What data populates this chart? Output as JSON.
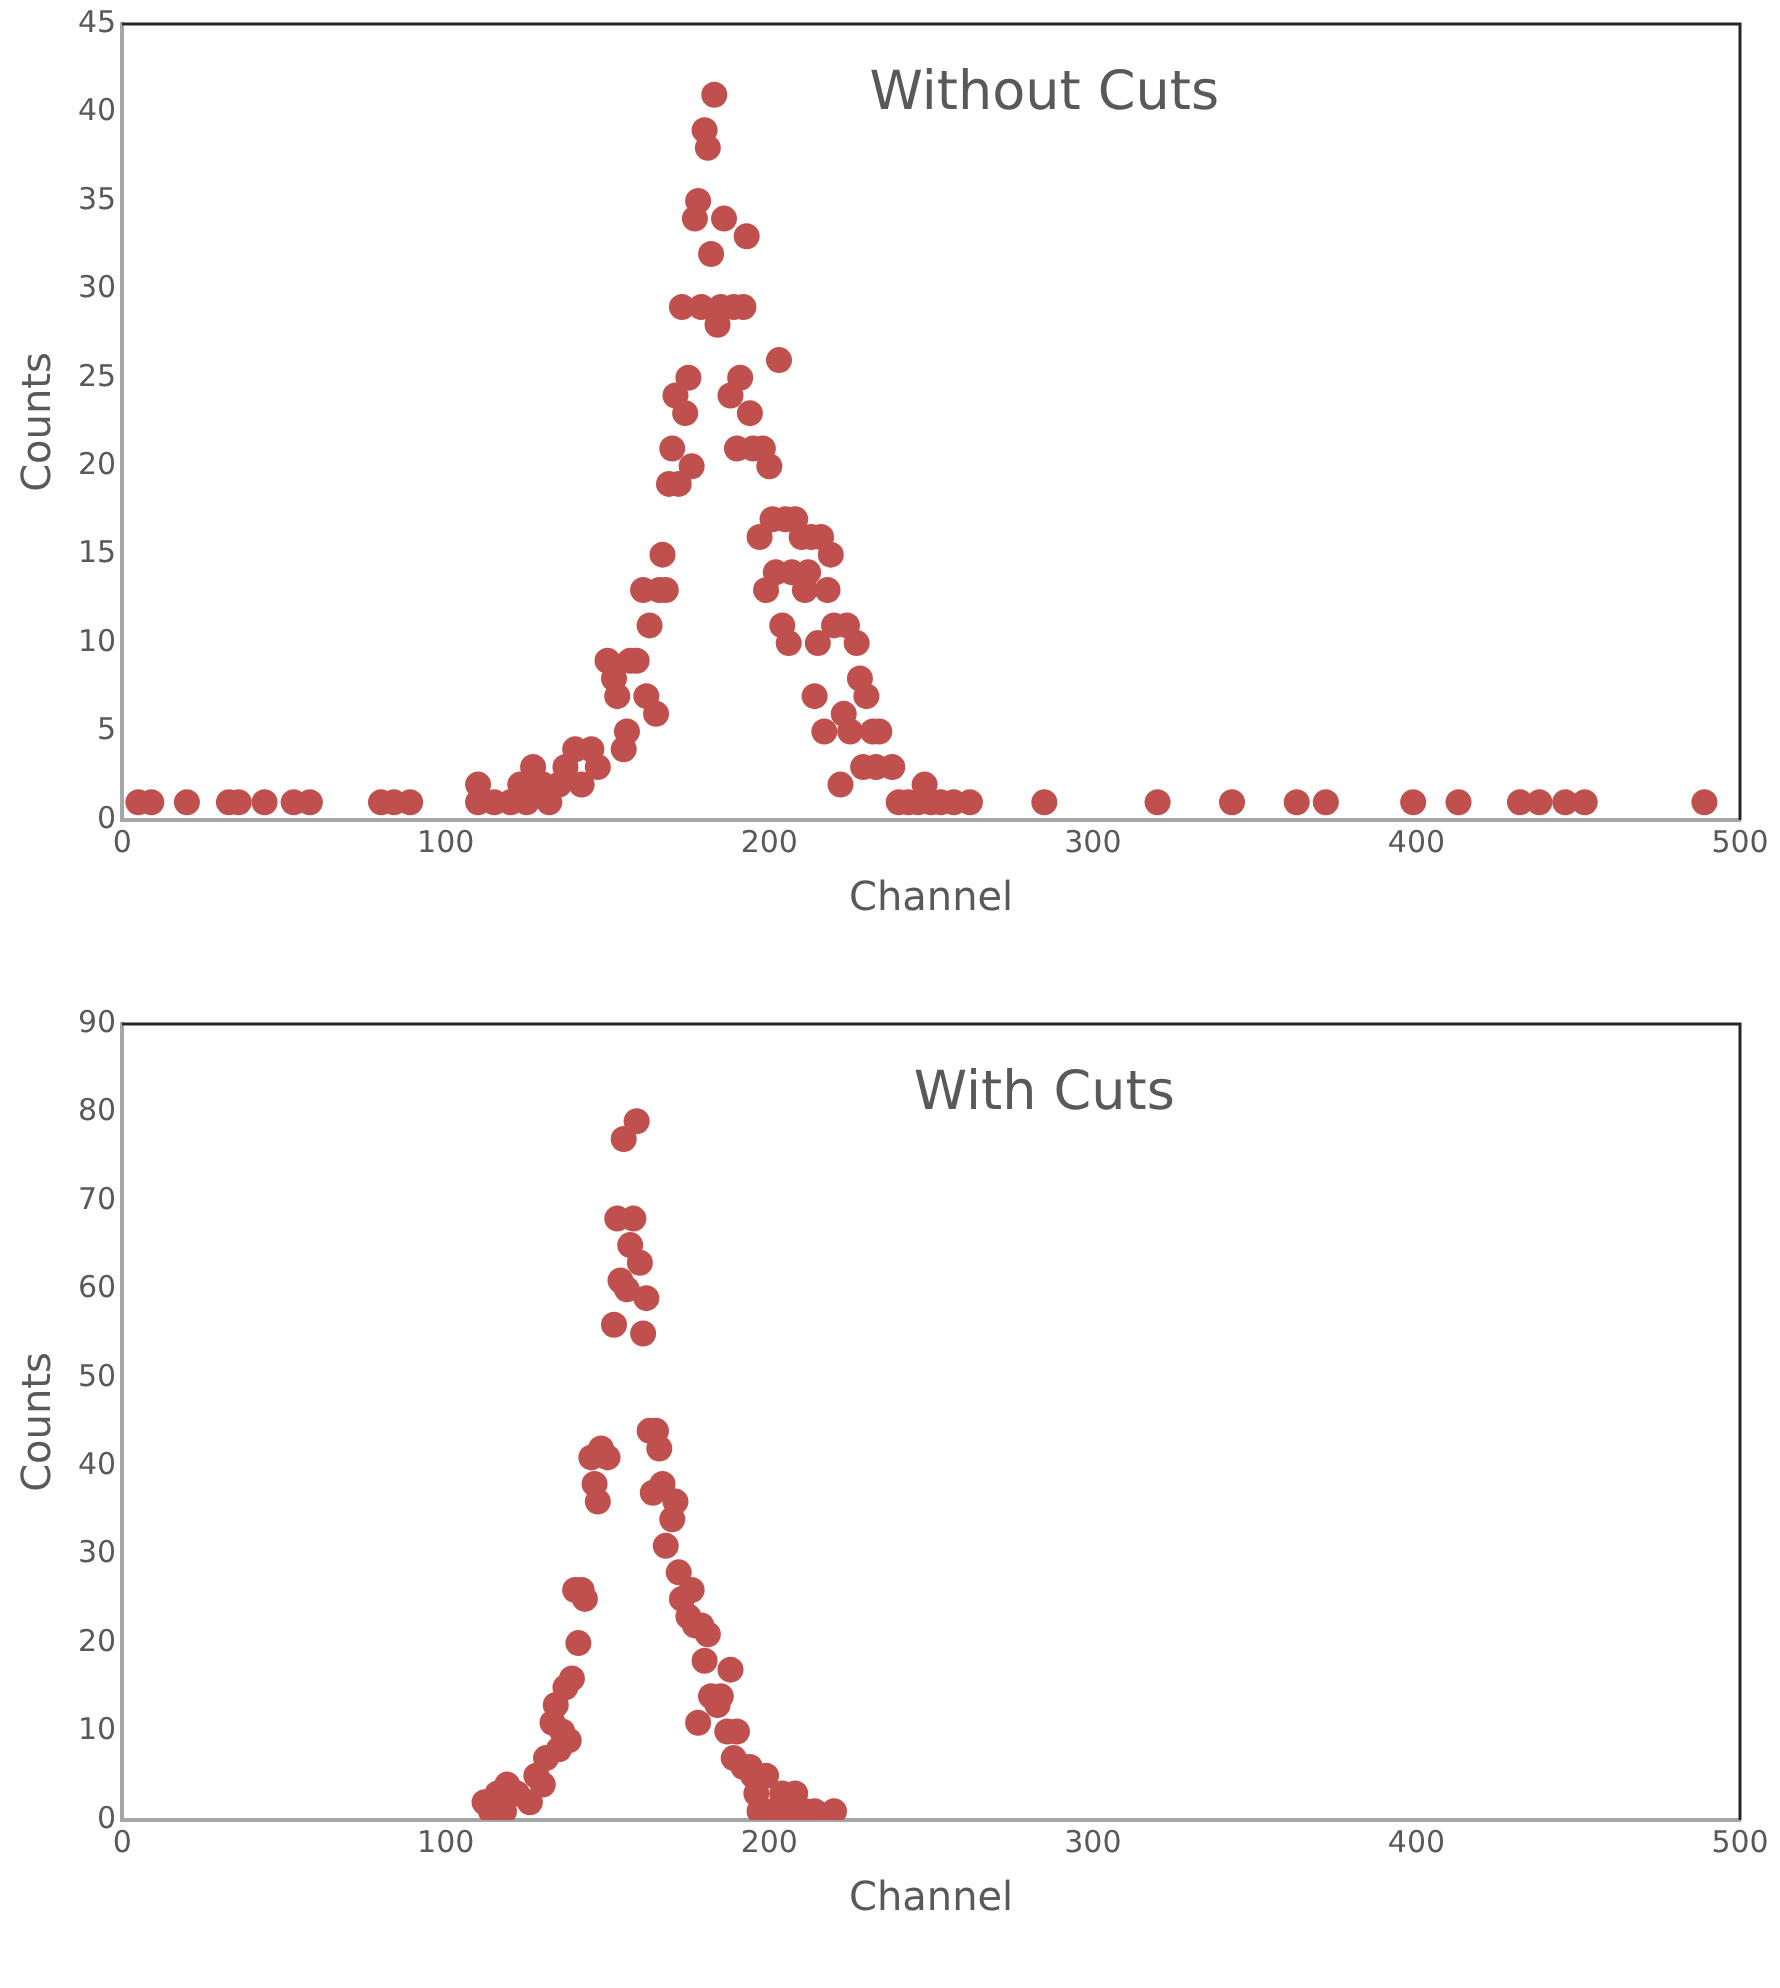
{
  "chart_data": [
    {
      "type": "scatter",
      "title": "Without Cuts",
      "xlabel": "Channel",
      "ylabel": "Counts",
      "xlim": [
        0,
        500
      ],
      "xticks": [
        0,
        100,
        200,
        300,
        400,
        500
      ],
      "ylim": [
        0,
        45
      ],
      "yticks": [
        0,
        5,
        10,
        15,
        20,
        25,
        30,
        35,
        40,
        45
      ],
      "grid": false,
      "legend": false,
      "marker": "circle",
      "series": [
        {
          "color": "#c0504d",
          "x": [
            5,
            9,
            20,
            33,
            36,
            44,
            53,
            58,
            80,
            84,
            89,
            110,
            110,
            115,
            120,
            123,
            125,
            127,
            130,
            132,
            135,
            137,
            140,
            142,
            145,
            147,
            150,
            152,
            153,
            155,
            156,
            157,
            159,
            161,
            162,
            163,
            165,
            166,
            167,
            168,
            169,
            170,
            171,
            172,
            173,
            174,
            175,
            176,
            177,
            178,
            179,
            180,
            181,
            182,
            183,
            184,
            185,
            186,
            188,
            189,
            190,
            191,
            192,
            193,
            194,
            195,
            197,
            198,
            199,
            200,
            201,
            202,
            203,
            204,
            205,
            206,
            207,
            208,
            210,
            211,
            212,
            213,
            214,
            215,
            216,
            217,
            218,
            219,
            220,
            222,
            223,
            224,
            225,
            227,
            228,
            229,
            230,
            232,
            233,
            234,
            238,
            240,
            243,
            246,
            248,
            250,
            253,
            257,
            262,
            285,
            320,
            343,
            363,
            372,
            399,
            413,
            432,
            438,
            446,
            452,
            489
          ],
          "values": [
            1,
            1,
            1,
            1,
            1,
            1,
            1,
            1,
            1,
            1,
            1,
            1,
            2,
            1,
            1,
            2,
            1,
            3,
            2,
            1,
            2,
            3,
            4,
            2,
            4,
            3,
            9,
            8,
            7,
            4,
            5,
            9,
            9,
            13,
            7,
            11,
            6,
            13,
            15,
            13,
            19,
            21,
            24,
            19,
            29,
            23,
            25,
            20,
            34,
            35,
            29,
            39,
            38,
            32,
            41,
            28,
            29,
            34,
            24,
            29,
            21,
            25,
            29,
            33,
            23,
            21,
            16,
            21,
            13,
            20,
            17,
            14,
            26,
            11,
            17,
            10,
            14,
            17,
            16,
            13,
            14,
            16,
            7,
            10,
            16,
            5,
            13,
            15,
            11,
            2,
            6,
            11,
            5,
            10,
            8,
            3,
            7,
            5,
            3,
            5,
            3,
            1,
            1,
            1,
            2,
            1,
            1,
            1,
            1,
            1,
            1,
            1,
            1,
            1,
            1,
            1,
            1,
            1,
            1,
            1,
            1
          ]
        }
      ]
    },
    {
      "type": "scatter",
      "title": "With Cuts",
      "xlabel": "Channel",
      "ylabel": "Counts",
      "xlim": [
        0,
        500
      ],
      "xticks": [
        0,
        100,
        200,
        300,
        400,
        500
      ],
      "ylim": [
        0,
        90
      ],
      "yticks": [
        0,
        10,
        20,
        30,
        40,
        50,
        60,
        70,
        80,
        90
      ],
      "grid": false,
      "legend": false,
      "marker": "circle",
      "series": [
        {
          "color": "#c0504d",
          "x": [
            112,
            114,
            116,
            118,
            119,
            122,
            126,
            128,
            130,
            131,
            133,
            134,
            135,
            136,
            137,
            138,
            139,
            140,
            141,
            142,
            143,
            145,
            146,
            147,
            148,
            150,
            152,
            153,
            154,
            155,
            156,
            157,
            158,
            159,
            160,
            161,
            162,
            163,
            164,
            165,
            166,
            167,
            168,
            170,
            171,
            172,
            173,
            175,
            176,
            177,
            178,
            179,
            180,
            181,
            182,
            184,
            185,
            187,
            188,
            189,
            190,
            192,
            194,
            195,
            196,
            197,
            199,
            201,
            204,
            206,
            208,
            211,
            214,
            220
          ],
          "values": [
            2,
            1,
            3,
            1,
            4,
            3,
            2,
            5,
            4,
            7,
            11,
            13,
            8,
            10,
            15,
            9,
            16,
            26,
            20,
            26,
            25,
            41,
            38,
            36,
            42,
            41,
            56,
            68,
            61,
            77,
            60,
            65,
            68,
            79,
            63,
            55,
            59,
            44,
            37,
            44,
            42,
            38,
            31,
            34,
            36,
            28,
            25,
            23,
            26,
            22,
            11,
            22,
            18,
            21,
            14,
            13,
            14,
            10,
            17,
            7,
            10,
            6,
            6,
            5,
            3,
            1,
            5,
            1,
            3,
            1,
            3,
            1,
            1,
            1
          ]
        }
      ]
    }
  ]
}
